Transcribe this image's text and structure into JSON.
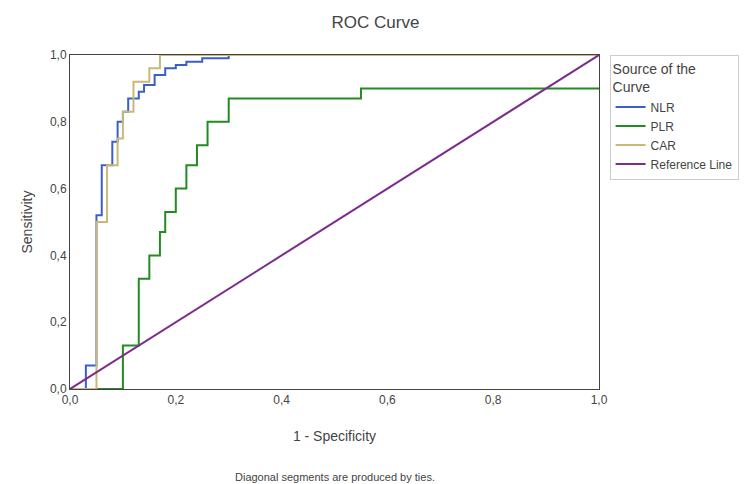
{
  "chart_data": {
    "type": "line",
    "title": "ROC Curve",
    "xlabel": "1 - Specificity",
    "ylabel": "Sensitivity",
    "annotations": [
      "Diagonal segments are produced by ties."
    ],
    "legend_title": "Source of the\nCurve",
    "legend": "right",
    "grid": false,
    "xlim": [
      0.0,
      1.0
    ],
    "ylim": [
      0.0,
      1.0
    ],
    "xticks": [
      {
        "value": 0.0,
        "label": "0,0"
      },
      {
        "value": 0.2,
        "label": "0,2"
      },
      {
        "value": 0.4,
        "label": "0,4"
      },
      {
        "value": 0.6,
        "label": "0,6"
      },
      {
        "value": 0.8,
        "label": "0,8"
      },
      {
        "value": 1.0,
        "label": "1,0"
      }
    ],
    "yticks": [
      {
        "value": 0.0,
        "label": "0,0"
      },
      {
        "value": 0.2,
        "label": "0,2"
      },
      {
        "value": 0.4,
        "label": "0,4"
      },
      {
        "value": 0.6,
        "label": "0,6"
      },
      {
        "value": 0.8,
        "label": "0,8"
      },
      {
        "value": 1.0,
        "label": "1,0"
      }
    ],
    "series": [
      {
        "name": "NLR",
        "color": "#3a5fcd",
        "x": [
          0.0,
          0.03,
          0.03,
          0.05,
          0.05,
          0.06,
          0.06,
          0.08,
          0.08,
          0.09,
          0.09,
          0.1,
          0.1,
          0.11,
          0.11,
          0.13,
          0.13,
          0.14,
          0.14,
          0.16,
          0.16,
          0.18,
          0.18,
          0.2,
          0.2,
          0.22,
          0.22,
          0.25,
          0.25,
          0.3,
          0.3,
          1.0
        ],
        "values": [
          0.0,
          0.0,
          0.07,
          0.07,
          0.52,
          0.52,
          0.67,
          0.67,
          0.74,
          0.74,
          0.8,
          0.8,
          0.83,
          0.83,
          0.87,
          0.87,
          0.89,
          0.89,
          0.91,
          0.91,
          0.94,
          0.94,
          0.96,
          0.96,
          0.97,
          0.97,
          0.98,
          0.98,
          0.99,
          0.99,
          1.0,
          1.0
        ]
      },
      {
        "name": "PLR",
        "color": "#228b22",
        "x": [
          0.0,
          0.1,
          0.1,
          0.13,
          0.13,
          0.15,
          0.15,
          0.17,
          0.17,
          0.18,
          0.18,
          0.2,
          0.2,
          0.22,
          0.22,
          0.24,
          0.24,
          0.26,
          0.26,
          0.3,
          0.3,
          0.35,
          0.35,
          0.5,
          0.5,
          0.55,
          0.55,
          1.0
        ],
        "values": [
          0.0,
          0.0,
          0.13,
          0.13,
          0.33,
          0.33,
          0.4,
          0.4,
          0.47,
          0.47,
          0.53,
          0.53,
          0.6,
          0.6,
          0.67,
          0.67,
          0.73,
          0.73,
          0.8,
          0.8,
          0.87,
          0.87,
          0.87,
          0.87,
          0.87,
          0.87,
          0.9,
          0.9
        ]
      },
      {
        "name": "CAR",
        "color": "#c8b87a",
        "x": [
          0.0,
          0.05,
          0.05,
          0.07,
          0.07,
          0.09,
          0.09,
          0.1,
          0.1,
          0.12,
          0.12,
          0.15,
          0.15,
          0.17,
          0.17,
          1.0
        ],
        "values": [
          0.0,
          0.0,
          0.5,
          0.5,
          0.67,
          0.67,
          0.75,
          0.75,
          0.83,
          0.83,
          0.92,
          0.92,
          0.96,
          0.96,
          1.0,
          1.0
        ]
      },
      {
        "name": "Reference Line",
        "color": "#7b2d8b",
        "x": [
          0,
          1
        ],
        "values": [
          0,
          1
        ]
      }
    ]
  }
}
